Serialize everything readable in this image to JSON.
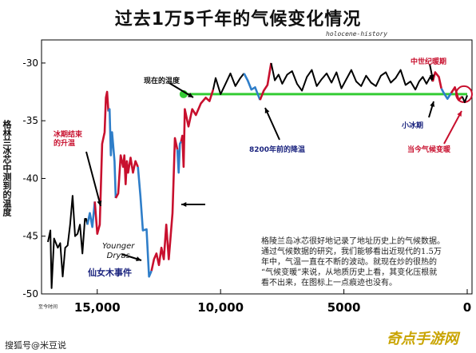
{
  "title": "过去1万5千年的气候变化情况",
  "subtitle": "holocene-history",
  "footer": {
    "left": "搜狐号@米豆说",
    "right": "奇点手游网"
  },
  "axis_caption": "至今时间",
  "ylabel": "格林兰冰芯中测到的温度",
  "annotations": {
    "present_temp": "现在的温度",
    "medieval_warm": "中世纪暖期",
    "little_ice_age": "小冰期",
    "current_warming": "当今气候变暖",
    "event_8200": "8200年前的降温",
    "younger_dryas_en": "Younger\nDryas",
    "younger_dryas_cn": "仙女木事件",
    "glacial_rise": "冰期结束\n的升温",
    "glacial_rise_prefix": "冰期",
    "glacial_rise_mid": "结束",
    "glacial_rise_suffix": "的升温"
  },
  "note_lines": [
    "格陵兰岛冰芯很好地记录了地址历史上的气候数据。",
    "通过气候数据的研究，我们能够看出近现代的1.5万",
    "年中，气温一直在不断的波动。就现在炒的很热的",
    "“气候变暖”来说，从地质历史上看，其变化压根就",
    "看不出来，在图标上一点痕迹也没有。"
  ],
  "colors": {
    "red": "#c8102e",
    "blue": "#2f7ec9",
    "black": "#000000",
    "green": "#33cc33",
    "navy": "#1a237e"
  },
  "chart_data": {
    "type": "line",
    "title": "过去1万5千年的气候变化情况",
    "xlabel": "至今时间",
    "ylabel": "格林兰冰芯中测到的温度",
    "xlim": [
      17000,
      0
    ],
    "ylim": [
      -50,
      -28
    ],
    "xticks": [
      15000,
      10000,
      5000,
      0
    ],
    "xtick_labels": [
      "15,000",
      "10,000",
      "5000",
      "0"
    ],
    "yticks": [
      -30,
      -35,
      -40,
      -45,
      -50
    ],
    "ytick_labels": [
      "-30",
      "-35",
      "-40",
      "-45",
      "-50"
    ],
    "reference_line": {
      "y": -32.7,
      "x_from": 11500,
      "x_to": 0
    },
    "series": [
      {
        "color": "black",
        "points": [
          [
            17000,
            -45.5
          ],
          [
            16900,
            -44.5
          ],
          [
            16850,
            -49.5
          ],
          [
            16750,
            -45.2
          ],
          [
            16600,
            -46
          ],
          [
            16500,
            -45.6
          ],
          [
            16400,
            -48.5
          ],
          [
            16300,
            -46
          ],
          [
            16200,
            -45.8
          ],
          [
            16100,
            -44
          ],
          [
            16000,
            -41.5
          ],
          [
            15900,
            -45
          ],
          [
            15800,
            -44.8
          ],
          [
            15700,
            -44
          ],
          [
            15600,
            -46.5
          ],
          [
            15500,
            -43.5
          ],
          [
            15450,
            -43.5
          ],
          [
            15400,
            -44
          ]
        ]
      },
      {
        "color": "blue",
        "points": [
          [
            15400,
            -44
          ],
          [
            15300,
            -43
          ],
          [
            15200,
            -44.2
          ],
          [
            15100,
            -42
          ]
        ]
      },
      {
        "color": "red",
        "points": [
          [
            15100,
            -42
          ],
          [
            15000,
            -44.8
          ],
          [
            14900,
            -44
          ],
          [
            14800,
            -37
          ],
          [
            14700,
            -36
          ],
          [
            14650,
            -33
          ],
          [
            14600,
            -32.5
          ],
          [
            14550,
            -34.2
          ]
        ]
      },
      {
        "color": "blue",
        "points": [
          [
            14550,
            -34.2
          ],
          [
            14500,
            -34
          ],
          [
            14450,
            -38
          ],
          [
            14400,
            -36
          ],
          [
            14300,
            -38.5
          ],
          [
            14250,
            -41.7
          ]
        ]
      },
      {
        "color": "red",
        "points": [
          [
            14250,
            -41.7
          ],
          [
            14150,
            -41.3
          ],
          [
            14050,
            -38
          ],
          [
            13950,
            -39
          ],
          [
            13900,
            -38
          ],
          [
            13850,
            -40.5
          ],
          [
            13800,
            -38.5
          ],
          [
            13750,
            -39.5
          ],
          [
            13650,
            -38.2
          ],
          [
            13550,
            -39.5
          ],
          [
            13450,
            -38.5
          ],
          [
            13350,
            -39
          ]
        ]
      },
      {
        "color": "blue",
        "points": [
          [
            13350,
            -39
          ],
          [
            13250,
            -41.5
          ],
          [
            13150,
            -44.5
          ],
          [
            13000,
            -44.4
          ],
          [
            12900,
            -48.5
          ],
          [
            12800,
            -48
          ]
        ]
      },
      {
        "color": "red",
        "points": [
          [
            12800,
            -48
          ],
          [
            12700,
            -47
          ],
          [
            12600,
            -46.5
          ],
          [
            12500,
            -47.5
          ],
          [
            12400,
            -46
          ],
          [
            12300,
            -47
          ],
          [
            12200,
            -44
          ],
          [
            12100,
            -47
          ],
          [
            11950,
            -43
          ],
          [
            11850,
            -36.5
          ],
          [
            11750,
            -37.5
          ]
        ]
      },
      {
        "color": "blue",
        "points": [
          [
            11750,
            -37.5
          ],
          [
            11700,
            -39.5
          ],
          [
            11650,
            -37
          ],
          [
            11600,
            -36.8
          ]
        ]
      },
      {
        "color": "red",
        "points": [
          [
            11600,
            -36.8
          ],
          [
            11550,
            -36.3
          ],
          [
            11500,
            -39
          ],
          [
            11450,
            -34
          ],
          [
            11300,
            -35.5
          ],
          [
            11150,
            -34
          ],
          [
            11000,
            -34.5
          ],
          [
            10800,
            -33.5
          ],
          [
            10600,
            -33
          ],
          [
            10450,
            -33.3
          ],
          [
            10300,
            -32.3
          ]
        ]
      },
      {
        "color": "black",
        "points": [
          [
            10300,
            -32.3
          ],
          [
            10200,
            -31.3
          ],
          [
            10000,
            -32.7
          ],
          [
            9800,
            -31.8
          ],
          [
            9600,
            -30.9
          ],
          [
            9400,
            -32
          ],
          [
            9200,
            -31.3
          ],
          [
            9050,
            -30.9
          ]
        ]
      },
      {
        "color": "blue",
        "points": [
          [
            9050,
            -30.9
          ],
          [
            8900,
            -31.5
          ],
          [
            8750,
            -32.3
          ],
          [
            8600,
            -32.1
          ],
          [
            8400,
            -33.2
          ]
        ]
      },
      {
        "color": "red",
        "points": [
          [
            8400,
            -33.2
          ],
          [
            8250,
            -32.4
          ],
          [
            8100,
            -31.9
          ],
          [
            7950,
            -30
          ]
        ]
      },
      {
        "color": "black",
        "points": [
          [
            7950,
            -30
          ],
          [
            7800,
            -31.5
          ],
          [
            7650,
            -31
          ],
          [
            7500,
            -31.8
          ],
          [
            7300,
            -31
          ],
          [
            7100,
            -30.7
          ],
          [
            6900,
            -31.8
          ],
          [
            6700,
            -32.4
          ],
          [
            6500,
            -31.2
          ],
          [
            6300,
            -30.6
          ],
          [
            6100,
            -32
          ],
          [
            5900,
            -31.4
          ],
          [
            5700,
            -30.9
          ],
          [
            5500,
            -31.7
          ],
          [
            5300,
            -30.8
          ],
          [
            5100,
            -32.2
          ],
          [
            4900,
            -31.4
          ],
          [
            4700,
            -30.6
          ],
          [
            4500,
            -31.6
          ],
          [
            4300,
            -32
          ],
          [
            4100,
            -31.1
          ],
          [
            3900,
            -31.7
          ],
          [
            3700,
            -32
          ],
          [
            3500,
            -31.1
          ],
          [
            3300,
            -30.8
          ],
          [
            3100,
            -31.7
          ],
          [
            2900,
            -31.3
          ],
          [
            2700,
            -30.6
          ],
          [
            2500,
            -31.9
          ],
          [
            2300,
            -31.6
          ],
          [
            2100,
            -32.3
          ],
          [
            1950,
            -31.6
          ],
          [
            1800,
            -31.2
          ],
          [
            1650,
            -31.8
          ],
          [
            1500,
            -31.2
          ],
          [
            1400,
            -31.6
          ]
        ]
      },
      {
        "color": "red",
        "points": [
          [
            1400,
            -31.6
          ],
          [
            1300,
            -30.8
          ],
          [
            1150,
            -31.2
          ],
          [
            1050,
            -32.2
          ]
        ]
      },
      {
        "color": "blue",
        "points": [
          [
            1050,
            -32.2
          ],
          [
            950,
            -32.6
          ],
          [
            800,
            -33.1
          ],
          [
            650,
            -32.6
          ]
        ]
      },
      {
        "color": "red",
        "points": [
          [
            650,
            -32.6
          ],
          [
            500,
            -32.1
          ],
          [
            350,
            -33.2
          ],
          [
            200,
            -32.9
          ]
        ]
      },
      {
        "color": "black",
        "points": [
          [
            200,
            -32.9
          ],
          [
            100,
            -33.4
          ],
          [
            0,
            -32.8
          ]
        ]
      }
    ]
  }
}
